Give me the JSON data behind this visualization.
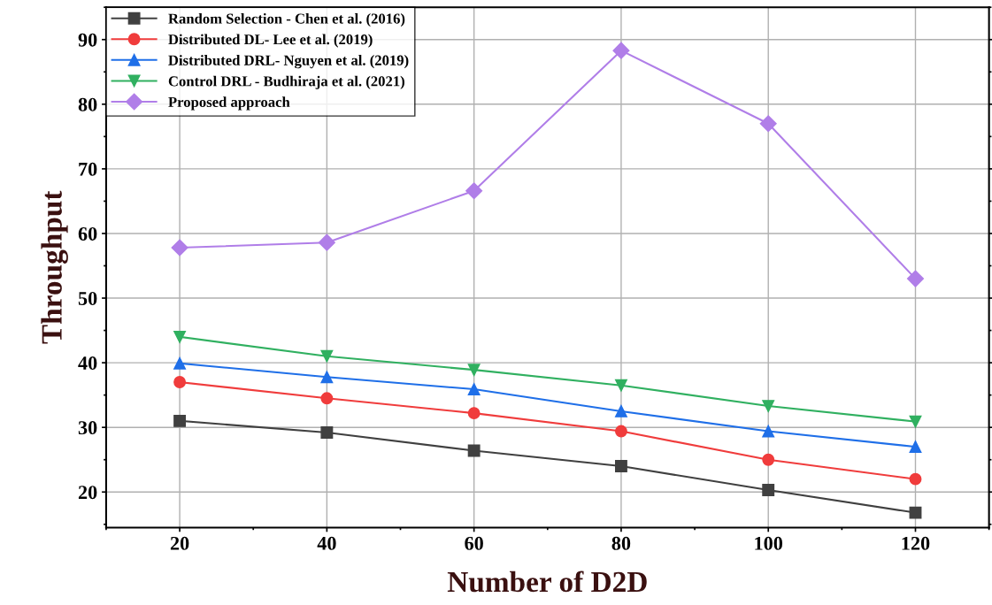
{
  "chart_data": {
    "type": "line",
    "xlabel": "Number of D2D",
    "ylabel": "Throughput",
    "x": [
      20,
      40,
      60,
      80,
      100,
      120
    ],
    "series": [
      {
        "name": "Random Selection - Chen et al. (2016)",
        "color": "#404040",
        "marker": "square",
        "values": [
          31.0,
          29.2,
          26.4,
          24.0,
          20.3,
          16.8
        ]
      },
      {
        "name": "Distributed DL- Lee et al. (2019)",
        "color": "#f03c3c",
        "marker": "circle",
        "values": [
          37.0,
          34.5,
          32.2,
          29.4,
          25.0,
          22.0
        ]
      },
      {
        "name": "Distributed DRL- Nguyen et al. (2019)",
        "color": "#1f6fe8",
        "marker": "triangle",
        "values": [
          39.9,
          37.8,
          35.9,
          32.5,
          29.4,
          27.0
        ]
      },
      {
        "name": "Control DRL - Budhiraja et al. (2021)",
        "color": "#30b060",
        "marker": "triangle_down",
        "values": [
          44.0,
          41.0,
          38.9,
          36.5,
          33.3,
          30.9
        ]
      },
      {
        "name": "Proposed approach",
        "color": "#b07ee8",
        "marker": "diamond",
        "values": [
          57.8,
          58.6,
          66.6,
          88.3,
          77.0,
          53.0
        ]
      }
    ],
    "xlim": [
      10,
      130
    ],
    "xticks": [
      20,
      40,
      60,
      80,
      100,
      120
    ],
    "ylim": [
      14.5,
      95
    ],
    "yticks": [
      20,
      30,
      40,
      50,
      60,
      70,
      80,
      90
    ],
    "grid": true,
    "legend": "top left",
    "line_style": "solid"
  }
}
